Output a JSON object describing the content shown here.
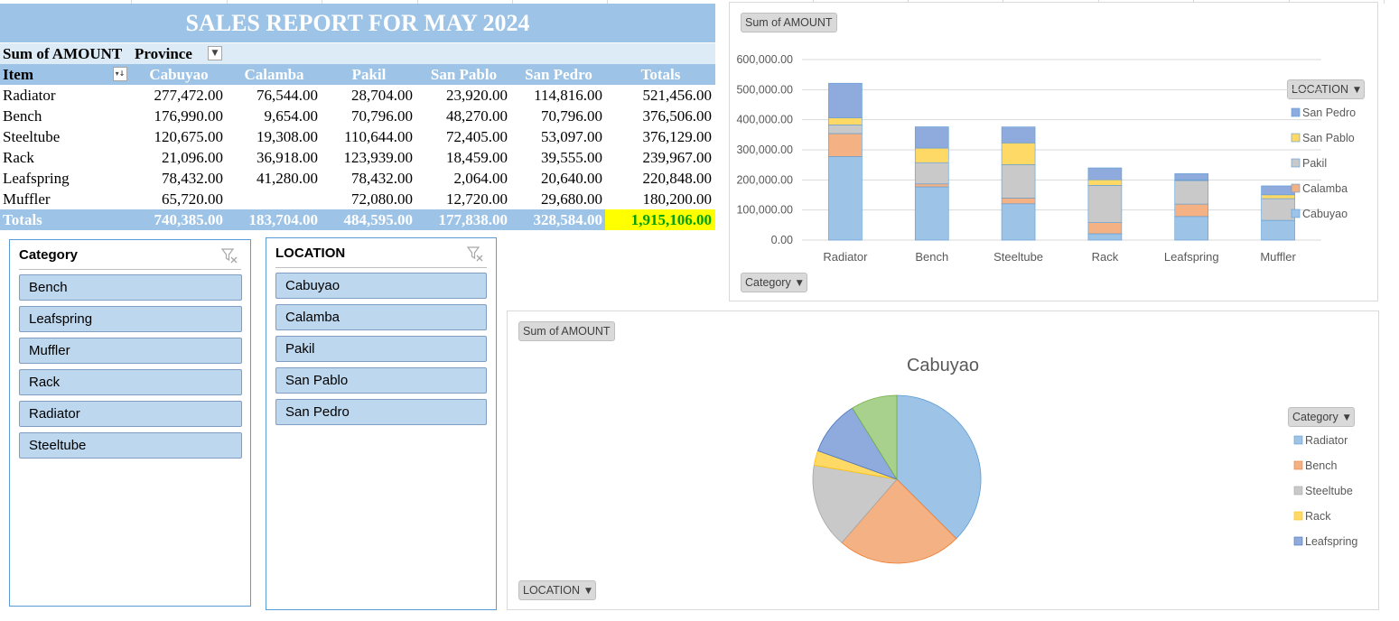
{
  "report": {
    "title": "SALES REPORT FOR MAY 2024",
    "values_label": "Sum of AMOUNT",
    "columns_field": "Province",
    "rows_field": "Item",
    "columns": [
      "Cabuyao",
      "Calamba",
      "Pakil",
      "San Pablo",
      "San Pedro",
      "Totals"
    ],
    "rows": [
      {
        "item": "Radiator",
        "values": [
          "277,472.00",
          "76,544.00",
          "28,704.00",
          "23,920.00",
          "114,816.00",
          "521,456.00"
        ]
      },
      {
        "item": "Bench",
        "values": [
          "176,990.00",
          "9,654.00",
          "70,796.00",
          "48,270.00",
          "70,796.00",
          "376,506.00"
        ]
      },
      {
        "item": "Steeltube",
        "values": [
          "120,675.00",
          "19,308.00",
          "110,644.00",
          "72,405.00",
          "53,097.00",
          "376,129.00"
        ]
      },
      {
        "item": "Rack",
        "values": [
          "21,096.00",
          "36,918.00",
          "123,939.00",
          "18,459.00",
          "39,555.00",
          "239,967.00"
        ]
      },
      {
        "item": "Leafspring",
        "values": [
          "78,432.00",
          "41,280.00",
          "78,432.00",
          "2,064.00",
          "20,640.00",
          "220,848.00"
        ]
      },
      {
        "item": "Muffler",
        "values": [
          "65,720.00",
          "",
          "72,080.00",
          "12,720.00",
          "29,680.00",
          "180,200.00"
        ]
      }
    ],
    "totals_label": "Totals",
    "totals": [
      "740,385.00",
      "183,704.00",
      "484,595.00",
      "177,838.00",
      "328,584.00",
      "1,915,106.00"
    ],
    "highlight_color": "#ffff00"
  },
  "slicers": {
    "category": {
      "title": "Category",
      "items": [
        "Bench",
        "Leafspring",
        "Muffler",
        "Rack",
        "Radiator",
        "Steeltube"
      ],
      "clear_icon": "clear-filter-icon"
    },
    "location": {
      "title": "LOCATION",
      "items": [
        "Cabuyao",
        "Calamba",
        "Pakil",
        "San Pablo",
        "San Pedro"
      ],
      "clear_icon": "clear-filter-icon"
    }
  },
  "bar_chart": {
    "values_button": "Sum of AMOUNT",
    "legend_button": "LOCATION",
    "axis_button": "Category"
  },
  "pie_chart": {
    "values_button": "Sum of AMOUNT",
    "legend_button": "Category",
    "filter_button": "LOCATION"
  },
  "colors": {
    "Cabuyao": "#9dc3e6",
    "Calamba": "#f4b183",
    "Pakil": "#c9c9c9",
    "San Pablo": "#ffd966",
    "San Pedro": "#8faadc",
    "Muffler": "#a9d18e"
  },
  "chart_data": [
    {
      "type": "bar",
      "stacked": true,
      "categories": [
        "Radiator",
        "Bench",
        "Steeltube",
        "Rack",
        "Leafspring",
        "Muffler"
      ],
      "series": [
        {
          "name": "Cabuyao",
          "values": [
            277472,
            176990,
            120675,
            21096,
            78432,
            65720
          ]
        },
        {
          "name": "Calamba",
          "values": [
            76544,
            9654,
            19308,
            36918,
            41280,
            0
          ]
        },
        {
          "name": "Pakil",
          "values": [
            28704,
            70796,
            110644,
            123939,
            78432,
            72080
          ]
        },
        {
          "name": "San Pablo",
          "values": [
            23920,
            48270,
            72405,
            18459,
            2064,
            12720
          ]
        },
        {
          "name": "San Pedro",
          "values": [
            114816,
            70796,
            53097,
            39555,
            20640,
            29680
          ]
        }
      ],
      "y_ticks": [
        "0.00",
        "100,000.00",
        "200,000.00",
        "300,000.00",
        "400,000.00",
        "500,000.00",
        "600,000.00"
      ],
      "ylim": [
        0,
        600000
      ],
      "legend_order": [
        "San Pedro",
        "San Pablo",
        "Pakil",
        "Calamba",
        "Cabuyao"
      ],
      "legend": "right",
      "grid": true
    },
    {
      "type": "pie",
      "title": "Cabuyao",
      "categories": [
        "Radiator",
        "Bench",
        "Steeltube",
        "Rack",
        "Leafspring",
        "Muffler"
      ],
      "values": [
        277472,
        176990,
        120675,
        21096,
        78432,
        65720
      ],
      "legend_entries": [
        "Radiator",
        "Bench",
        "Steeltube",
        "Rack",
        "Leafspring"
      ],
      "legend": "right"
    }
  ]
}
